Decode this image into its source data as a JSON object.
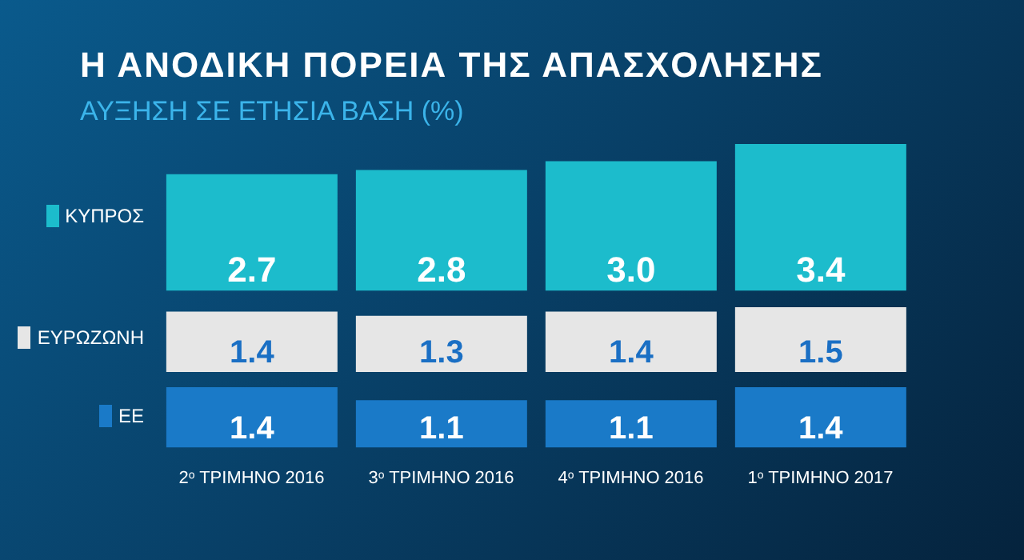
{
  "chart_data": [
    {
      "type": "bar",
      "title": "Η ΑΝΟΔΙΚΗ ΠΟΡΕΙΑ ΤΗΣ ΑΠΑΣΧΟΛΗΣΗΣ",
      "subtitle": "ΑΥΞΗΣΗ ΣΕ ΕΤΗΣΙΑ ΒΑΣΗ (%)",
      "categories": [
        null,
        null,
        null,
        null
      ],
      "series": [
        {
          "name": "ΚΥΠΡΟΣ",
          "color": "#1cbccc",
          "values": [
            2.7,
            2.8,
            3.0,
            3.4
          ],
          "value_labels": [
            "2.7",
            "2.8",
            "3.0",
            "3.4"
          ]
        }
      ],
      "tick_labels": false
    },
    {
      "type": "bar",
      "categories": [
        null,
        null,
        null,
        null
      ],
      "series": [
        {
          "name": "ΕΥΡΩΖΩΝΗ",
          "color": "#e6e6e6",
          "values": [
            1.4,
            1.3,
            1.4,
            1.5
          ],
          "value_labels": [
            "1.4",
            "1.3",
            "1.4",
            "1.5"
          ]
        }
      ],
      "tick_labels": false
    },
    {
      "type": "bar",
      "categories": [
        "2$^{ο}$ ΤΡΙΜΗΝΟ 2016",
        "3$^{ο}$ ΤΡΙΜΗΝΟ 2016",
        "4$^{ο}$ ΤΡΙΜΗΝΟ 2016",
        "1$^{ο}$ ΤΡΙΜΗΝΟ 2017"
      ],
      "series": [
        {
          "name": "ΕΕ",
          "color": "#1a7ac8",
          "values": [
            1.4,
            1.1,
            1.1,
            1.4
          ],
          "value_labels": [
            "1.4",
            "1.1",
            "1.1",
            "1.4"
          ]
        }
      ],
      "tick_labels": "x"
    }
  ]
}
